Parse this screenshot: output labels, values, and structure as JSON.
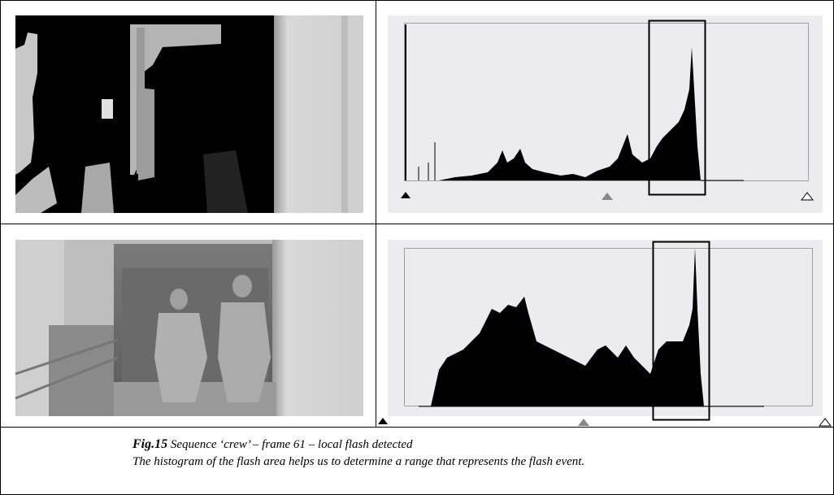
{
  "caption": {
    "label": "Fig.15",
    "title": "Sequence ‘crew’ – frame 61 – local flash detected",
    "text": "The histogram of the flash area helps us to determine a range that represents the flash event."
  }
}
